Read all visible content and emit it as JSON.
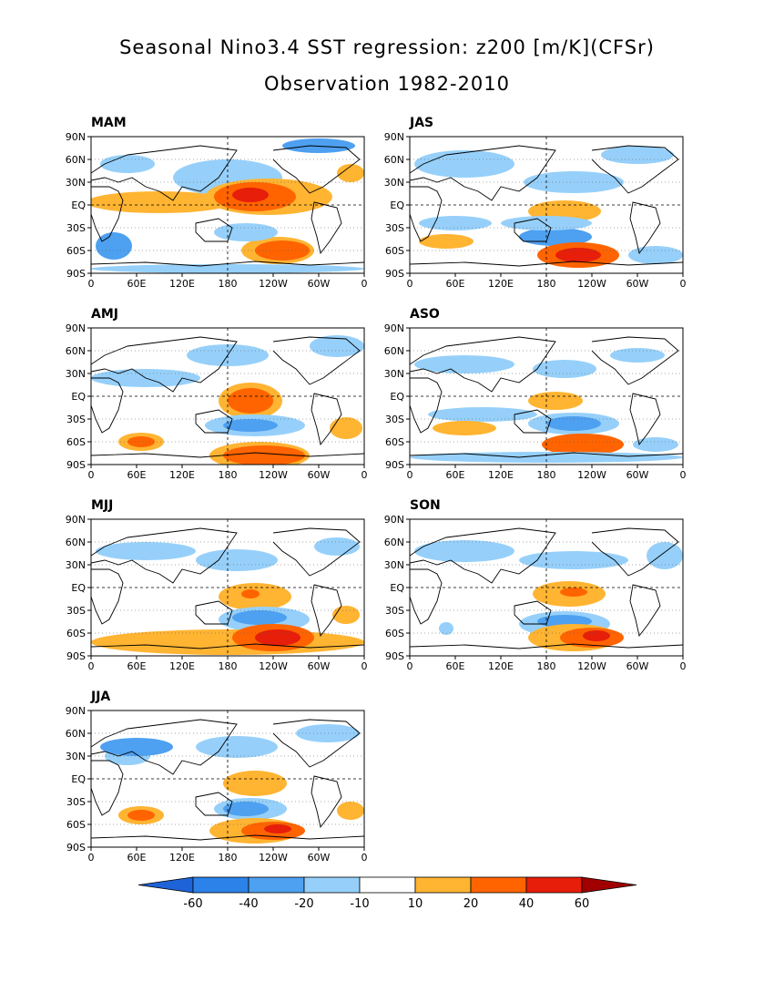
{
  "title": "Seasonal Nino3.4 SST regression: z200 [m/K](CFSr)",
  "subtitle": "Observation 1982-2010",
  "lat_labels": [
    "90N",
    "60N",
    "30N",
    "EQ",
    "30S",
    "60S",
    "90S"
  ],
  "lon_labels": [
    "0",
    "60E",
    "120E",
    "180",
    "120W",
    "60W",
    "0"
  ],
  "panels": [
    {
      "label": "MAM"
    },
    {
      "label": "JAS"
    },
    {
      "label": "AMJ"
    },
    {
      "label": "ASO"
    },
    {
      "label": "MJJ"
    },
    {
      "label": "SON"
    },
    {
      "label": "JJA"
    }
  ],
  "colorbar": {
    "labels": [
      "-60",
      "-40",
      "-20",
      "-10",
      "10",
      "20",
      "40",
      "60"
    ],
    "colors": [
      "#1e64d8",
      "#2c82e8",
      "#4ea0f0",
      "#96d0fa",
      "#ffffff",
      "#ffb432",
      "#ff6400",
      "#e61e0a",
      "#a00000"
    ]
  },
  "colors": {
    "neg_light": "#96d0fa",
    "neg_mid": "#4ea0f0",
    "neg_strong": "#2c82e8",
    "pos_light": "#ffb432",
    "pos_mid": "#ff6400",
    "pos_strong": "#e61e0a"
  }
}
